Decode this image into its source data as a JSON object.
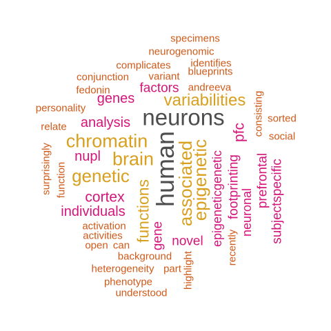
{
  "colors": {
    "dark_gray": "#4d4d4d",
    "gold": "#d9a020",
    "magenta": "#d4157a",
    "orange": "#cf5a1a"
  },
  "words": [
    {
      "text": "neurons",
      "color": "dark_gray"
    },
    {
      "text": "human",
      "color": "dark_gray"
    },
    {
      "text": "variabilities",
      "color": "gold"
    },
    {
      "text": "chromatin",
      "color": "gold"
    },
    {
      "text": "brain",
      "color": "gold"
    },
    {
      "text": "genetic",
      "color": "gold"
    },
    {
      "text": "associated",
      "color": "gold"
    },
    {
      "text": "epigenetic",
      "color": "gold"
    },
    {
      "text": "functions",
      "color": "gold"
    },
    {
      "text": "genes",
      "color": "magenta"
    },
    {
      "text": "factors",
      "color": "magenta"
    },
    {
      "text": "analysis",
      "color": "magenta"
    },
    {
      "text": "nupl",
      "color": "magenta"
    },
    {
      "text": "cortex",
      "color": "magenta"
    },
    {
      "text": "individuals",
      "color": "magenta"
    },
    {
      "text": "pfc",
      "color": "magenta"
    },
    {
      "text": "gene",
      "color": "magenta"
    },
    {
      "text": "novel",
      "color": "magenta"
    },
    {
      "text": "epigeneticgenetic",
      "color": "magenta"
    },
    {
      "text": "footprinting",
      "color": "magenta"
    },
    {
      "text": "neuronal",
      "color": "magenta"
    },
    {
      "text": "prefrontal",
      "color": "magenta"
    },
    {
      "text": "subjectspecific",
      "color": "magenta"
    },
    {
      "text": "specimens",
      "color": "orange"
    },
    {
      "text": "neurogenomic",
      "color": "orange"
    },
    {
      "text": "complicates",
      "color": "orange"
    },
    {
      "text": "identifies",
      "color": "orange"
    },
    {
      "text": "conjunction",
      "color": "orange"
    },
    {
      "text": "variant",
      "color": "orange"
    },
    {
      "text": "blueprints",
      "color": "orange"
    },
    {
      "text": "fedonin",
      "color": "orange"
    },
    {
      "text": "andreeva",
      "color": "orange"
    },
    {
      "text": "personality",
      "color": "orange"
    },
    {
      "text": "consisting",
      "color": "orange"
    },
    {
      "text": "sorted",
      "color": "orange"
    },
    {
      "text": "relate",
      "color": "orange"
    },
    {
      "text": "social",
      "color": "orange"
    },
    {
      "text": "surprisingly",
      "color": "orange"
    },
    {
      "text": "function",
      "color": "orange"
    },
    {
      "text": "activation",
      "color": "orange"
    },
    {
      "text": "activities",
      "color": "orange"
    },
    {
      "text": "open",
      "color": "orange"
    },
    {
      "text": "can",
      "color": "orange"
    },
    {
      "text": "recently",
      "color": "orange"
    },
    {
      "text": "background",
      "color": "orange"
    },
    {
      "text": "highlight",
      "color": "orange"
    },
    {
      "text": "heterogeneity",
      "color": "orange"
    },
    {
      "text": "part",
      "color": "orange"
    },
    {
      "text": "phenotype",
      "color": "orange"
    },
    {
      "text": "understood",
      "color": "orange"
    }
  ]
}
